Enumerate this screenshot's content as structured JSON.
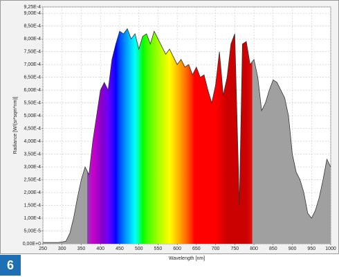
{
  "badge": "6",
  "chart_data": {
    "type": "area",
    "xlabel": "Wavelength [nm]",
    "ylabel": "Radiance [W/(sr*sqm*nm)]",
    "color": "#a0a0a0",
    "line_color": "#333333",
    "grid": true,
    "xlim": [
      250,
      1000
    ],
    "ylim": [
      0,
      0.000925
    ],
    "xticks": [
      250,
      300,
      350,
      400,
      450,
      500,
      550,
      600,
      650,
      700,
      750,
      800,
      850,
      900,
      950,
      1000
    ],
    "yticks": [
      {
        "value": 0,
        "label": "0,00E+0"
      },
      {
        "value": 5e-05,
        "label": "5,00E-5"
      },
      {
        "value": 0.0001,
        "label": "1,00E-4"
      },
      {
        "value": 0.00015,
        "label": "1,50E-4"
      },
      {
        "value": 0.0002,
        "label": "2,00E-4"
      },
      {
        "value": 0.00025,
        "label": "2,50E-4"
      },
      {
        "value": 0.0003,
        "label": "3,00E-4"
      },
      {
        "value": 0.00035,
        "label": "3,50E-4"
      },
      {
        "value": 0.0004,
        "label": "4,00E-4"
      },
      {
        "value": 0.00045,
        "label": "4,50E-4"
      },
      {
        "value": 0.0005,
        "label": "5,00E-4"
      },
      {
        "value": 0.00055,
        "label": "5,50E-4"
      },
      {
        "value": 0.0006,
        "label": "6,00E-4"
      },
      {
        "value": 0.00065,
        "label": "6,50E-4"
      },
      {
        "value": 0.0007,
        "label": "7,00E-4"
      },
      {
        "value": 0.00075,
        "label": "7,50E-4"
      },
      {
        "value": 0.0008,
        "label": "8,00E-4"
      },
      {
        "value": 0.00085,
        "label": "8,50E-4"
      },
      {
        "value": 0.0009,
        "label": "9,00E-4"
      },
      {
        "value": 0.000925,
        "label": "9,25E-4"
      }
    ],
    "x": [
      250,
      260,
      270,
      280,
      290,
      300,
      310,
      320,
      330,
      340,
      350,
      360,
      370,
      380,
      390,
      400,
      410,
      420,
      430,
      440,
      450,
      460,
      470,
      480,
      490,
      500,
      510,
      520,
      530,
      540,
      550,
      560,
      570,
      580,
      590,
      600,
      610,
      620,
      630,
      640,
      650,
      660,
      670,
      680,
      690,
      700,
      710,
      720,
      730,
      740,
      750,
      762,
      770,
      780,
      790,
      800,
      810,
      820,
      830,
      840,
      850,
      860,
      870,
      880,
      890,
      900,
      910,
      920,
      930,
      940,
      950,
      960,
      970,
      980,
      990,
      1000
    ],
    "values": [
      5e-06,
      5e-06,
      5e-06,
      5e-06,
      5e-06,
      7e-06,
      1e-05,
      4e-05,
      0.0001,
      0.00018,
      0.00025,
      0.0003,
      0.00027,
      0.0004,
      0.0005,
      0.0006,
      0.00063,
      0.0006,
      0.00072,
      0.00078,
      0.00083,
      0.00082,
      0.00084,
      0.0008,
      0.00082,
      0.00076,
      0.00081,
      0.00082,
      0.00078,
      0.00083,
      0.0008,
      0.00077,
      0.00074,
      0.00076,
      0.00073,
      0.0007,
      0.00072,
      0.00069,
      0.0007,
      0.00066,
      0.00069,
      0.00065,
      0.00066,
      0.0006,
      0.00055,
      0.00062,
      0.00075,
      0.00058,
      0.00065,
      0.00078,
      0.00082,
      0.00015,
      0.00078,
      0.00079,
      0.0007,
      0.00072,
      0.00065,
      0.00052,
      0.00055,
      0.0006,
      0.00064,
      0.00063,
      0.0006,
      0.00057,
      0.0005,
      0.00035,
      0.00028,
      0.00025,
      0.0002,
      0.00012,
      0.0001,
      0.00013,
      0.00018,
      0.00025,
      0.00033,
      0.0003
    ]
  }
}
